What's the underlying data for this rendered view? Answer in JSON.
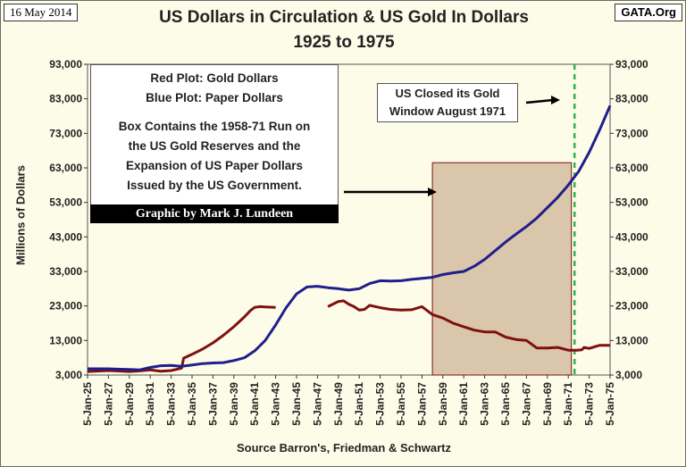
{
  "header": {
    "date": "16 May 2014",
    "site": "GATA.Org",
    "title_line1": "US Dollars in Circulation & US Gold In Dollars",
    "title_line2": "1925 to 1975"
  },
  "legend_box": {
    "line1": "Red Plot: Gold Dollars",
    "line2": "Blue Plot: Paper Dollars",
    "line3": "Box Contains the 1958-71 Run on",
    "line4": "the US Gold Reserves and the",
    "line5": "Expansion of US Paper Dollars",
    "line6": "Issued by the US Government."
  },
  "credit": "Graphic by Mark J. Lundeen",
  "annotation": {
    "line1": "US Closed its Gold",
    "line2": "Window August 1971"
  },
  "colors": {
    "gold_series": "#7f1010",
    "paper_series": "#1f1f8c",
    "shaded_box": "#c8a98a",
    "window_line": "#2fb54a",
    "plot_background": "#fdfce8"
  },
  "chart_data": {
    "type": "line",
    "title": "US Dollars in Circulation & US Gold In Dollars 1925 to 1975",
    "ylabel": "Millions of Dollars",
    "xlabel": "Source Barron's, Friedman & Schwartz",
    "ylim": [
      3000,
      93000
    ],
    "xlim": [
      1925.0,
      1975.0
    ],
    "y_ticks": [
      "3,000",
      "13,000",
      "23,000",
      "33,000",
      "43,000",
      "53,000",
      "63,000",
      "73,000",
      "83,000",
      "93,000"
    ],
    "x_ticks": [
      "5-Jan-25",
      "5-Jan-27",
      "5-Jan-29",
      "5-Jan-31",
      "5-Jan-33",
      "5-Jan-35",
      "5-Jan-37",
      "5-Jan-39",
      "5-Jan-41",
      "5-Jan-43",
      "5-Jan-45",
      "5-Jan-47",
      "5-Jan-49",
      "5-Jan-51",
      "5-Jan-53",
      "5-Jan-55",
      "5-Jan-57",
      "5-Jan-59",
      "5-Jan-61",
      "5-Jan-63",
      "5-Jan-65",
      "5-Jan-67",
      "5-Jan-69",
      "5-Jan-71",
      "5-Jan-73",
      "5-Jan-75"
    ],
    "grid": false,
    "shaded_region": {
      "x_start": 1958.0,
      "x_end": 1971.3,
      "y_start": 3000,
      "y_end": 64500
    },
    "vertical_marker": {
      "x": 1971.6,
      "style": "dashed"
    },
    "series": [
      {
        "name": "Red Plot: Gold Dollars",
        "segments": [
          [
            [
              1925.0,
              4000
            ],
            [
              1927.0,
              4300
            ],
            [
              1929.0,
              4000
            ],
            [
              1930.0,
              4200
            ],
            [
              1931.0,
              4500
            ],
            [
              1932.0,
              4100
            ],
            [
              1933.0,
              4300
            ],
            [
              1934.0,
              5000
            ],
            [
              1934.2,
              7900
            ],
            [
              1935.0,
              9000
            ],
            [
              1936.0,
              10500
            ],
            [
              1937.0,
              12300
            ],
            [
              1938.0,
              14500
            ],
            [
              1939.0,
              17000
            ],
            [
              1940.0,
              19800
            ],
            [
              1940.6,
              21700
            ],
            [
              1941.0,
              22600
            ],
            [
              1941.5,
              22800
            ],
            [
              1942.0,
              22700
            ],
            [
              1943.0,
              22600
            ]
          ],
          [
            [
              1948.0,
              22800
            ],
            [
              1949.0,
              24300
            ],
            [
              1949.5,
              24500
            ],
            [
              1950.0,
              23500
            ],
            [
              1950.5,
              22800
            ],
            [
              1951.0,
              21800
            ],
            [
              1951.5,
              22000
            ],
            [
              1952.0,
              23200
            ],
            [
              1953.0,
              22500
            ],
            [
              1954.0,
              22000
            ],
            [
              1955.0,
              21800
            ],
            [
              1956.0,
              21900
            ],
            [
              1957.0,
              22800
            ],
            [
              1958.0,
              20500
            ],
            [
              1959.0,
              19500
            ],
            [
              1960.0,
              18000
            ],
            [
              1961.0,
              17000
            ],
            [
              1962.0,
              16000
            ],
            [
              1963.0,
              15500
            ],
            [
              1964.0,
              15500
            ],
            [
              1965.0,
              14000
            ],
            [
              1966.0,
              13300
            ],
            [
              1967.0,
              13000
            ],
            [
              1968.0,
              10800
            ],
            [
              1969.0,
              10800
            ],
            [
              1970.0,
              11000
            ],
            [
              1971.0,
              10200
            ],
            [
              1971.8,
              10200
            ],
            [
              1972.3,
              10300
            ],
            [
              1972.5,
              11000
            ],
            [
              1973.0,
              10700
            ],
            [
              1974.0,
              11600
            ],
            [
              1975.0,
              11600
            ]
          ]
        ]
      },
      {
        "name": "Blue Plot: Paper Dollars",
        "segments": [
          [
            [
              1925.0,
              4800
            ],
            [
              1927.0,
              4800
            ],
            [
              1929.0,
              4600
            ],
            [
              1930.0,
              4500
            ],
            [
              1931.0,
              5200
            ],
            [
              1932.0,
              5700
            ],
            [
              1933.0,
              5800
            ],
            [
              1934.0,
              5500
            ],
            [
              1935.0,
              5900
            ],
            [
              1936.0,
              6300
            ],
            [
              1937.0,
              6500
            ],
            [
              1938.0,
              6600
            ],
            [
              1939.0,
              7200
            ],
            [
              1940.0,
              8000
            ],
            [
              1941.0,
              10000
            ],
            [
              1942.0,
              13000
            ],
            [
              1943.0,
              17500
            ],
            [
              1944.0,
              22500
            ],
            [
              1945.0,
              26500
            ],
            [
              1946.0,
              28500
            ],
            [
              1947.0,
              28700
            ],
            [
              1948.0,
              28300
            ],
            [
              1949.0,
              28000
            ],
            [
              1950.0,
              27600
            ],
            [
              1951.0,
              28000
            ],
            [
              1952.0,
              29500
            ],
            [
              1953.0,
              30300
            ],
            [
              1954.0,
              30200
            ],
            [
              1955.0,
              30300
            ],
            [
              1956.0,
              30700
            ],
            [
              1957.0,
              31000
            ],
            [
              1958.0,
              31300
            ],
            [
              1959.0,
              32100
            ],
            [
              1960.0,
              32600
            ],
            [
              1961.0,
              33000
            ],
            [
              1962.0,
              34500
            ],
            [
              1963.0,
              36500
            ],
            [
              1964.0,
              39000
            ],
            [
              1965.0,
              41500
            ],
            [
              1966.0,
              43800
            ],
            [
              1967.0,
              46000
            ],
            [
              1968.0,
              48500
            ],
            [
              1969.0,
              51500
            ],
            [
              1970.0,
              54500
            ],
            [
              1971.0,
              58000
            ],
            [
              1972.0,
              62000
            ],
            [
              1973.0,
              67500
            ],
            [
              1974.0,
              74000
            ],
            [
              1975.0,
              81000
            ]
          ]
        ]
      }
    ]
  }
}
